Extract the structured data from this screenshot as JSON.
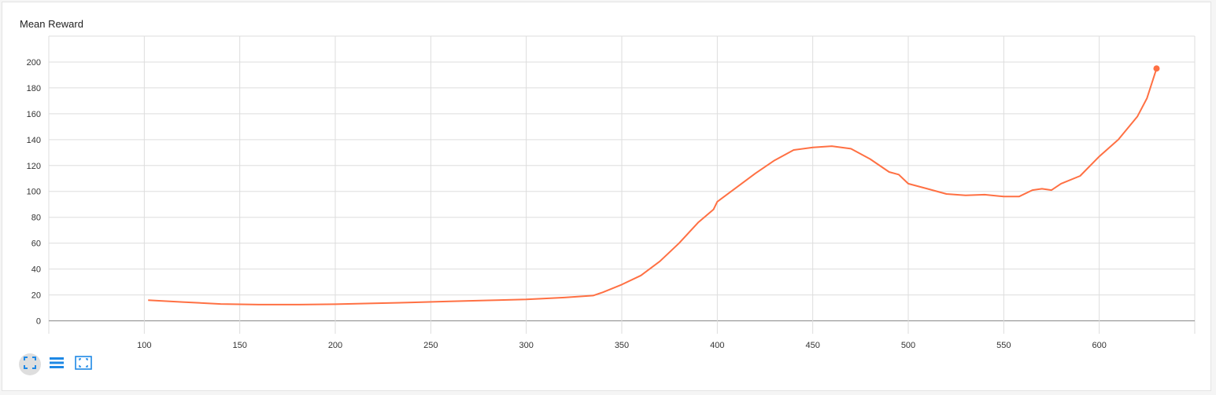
{
  "chart_title": "Mean Reward",
  "colors": {
    "line": "#ff7043",
    "grid": "#dddddd",
    "zero_line": "#999999",
    "icon": "#1e88e5"
  },
  "toolbar": {
    "icons": [
      "fit-domain-icon",
      "toggle-log-scale-icon",
      "reset-zoom-icon"
    ]
  },
  "chart_data": {
    "type": "line",
    "title": "Mean Reward",
    "xlabel": "",
    "ylabel": "",
    "xlim": [
      50,
      650
    ],
    "ylim": [
      -10,
      220
    ],
    "x_ticks": [
      100,
      150,
      200,
      250,
      300,
      350,
      400,
      450,
      500,
      550,
      600
    ],
    "y_ticks": [
      0,
      20,
      40,
      60,
      80,
      100,
      120,
      140,
      160,
      180,
      200
    ],
    "grid": true,
    "series": [
      {
        "color": "#ff7043",
        "x": [
          102,
          120,
          140,
          160,
          180,
          200,
          220,
          240,
          260,
          280,
          300,
          320,
          335,
          340,
          350,
          360,
          370,
          380,
          390,
          398,
          400,
          410,
          420,
          430,
          440,
          450,
          460,
          470,
          480,
          490,
          495,
          500,
          510,
          520,
          530,
          540,
          550,
          558,
          565,
          570,
          575,
          580,
          590,
          600,
          610,
          620,
          625,
          630
        ],
        "y": [
          16,
          14.5,
          13,
          12.5,
          12.5,
          12.8,
          13.5,
          14.2,
          15,
          15.8,
          16.5,
          18,
          19.5,
          22,
          28,
          35,
          46,
          60,
          76,
          86,
          92,
          103,
          114,
          124,
          132,
          134,
          135,
          133,
          125,
          115,
          113,
          106,
          102,
          98,
          97,
          97.5,
          96,
          96,
          101,
          102,
          101,
          106,
          112,
          127,
          140,
          158,
          172,
          195
        ]
      }
    ]
  }
}
